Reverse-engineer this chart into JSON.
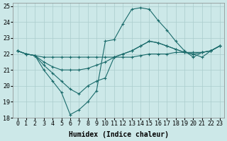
{
  "xlabel": "Humidex (Indice chaleur)",
  "background_color": "#cce8e8",
  "grid_color": "#aacccc",
  "line_color": "#1a6b6b",
  "xlim": [
    -0.5,
    23.5
  ],
  "ylim": [
    18,
    25.2
  ],
  "yticks": [
    18,
    19,
    20,
    21,
    22,
    23,
    24,
    25
  ],
  "xticks": [
    0,
    1,
    2,
    3,
    4,
    5,
    6,
    7,
    8,
    9,
    10,
    11,
    12,
    13,
    14,
    15,
    16,
    17,
    18,
    19,
    20,
    21,
    22,
    23
  ],
  "lines": [
    {
      "x": [
        0,
        1,
        2,
        3,
        4,
        5,
        6,
        7,
        8,
        9,
        10,
        11,
        12,
        13,
        14,
        15,
        16,
        17,
        18,
        19,
        20,
        21,
        22,
        23
      ],
      "y": [
        22.2,
        22.0,
        21.9,
        21.0,
        20.3,
        19.6,
        18.2,
        18.5,
        19.0,
        19.7,
        22.8,
        22.9,
        23.9,
        24.8,
        24.9,
        24.8,
        24.1,
        23.5,
        22.8,
        22.2,
        21.8,
        22.1,
        22.2,
        22.5
      ]
    },
    {
      "x": [
        0,
        1,
        2,
        3,
        4,
        5,
        6,
        7,
        8,
        9,
        10,
        11,
        12,
        13,
        14,
        15,
        16,
        17,
        18,
        19,
        20,
        21,
        22,
        23
      ],
      "y": [
        22.2,
        22.0,
        21.9,
        21.8,
        21.8,
        21.8,
        21.8,
        21.8,
        21.8,
        21.8,
        21.8,
        21.8,
        21.8,
        21.8,
        21.9,
        22.0,
        22.0,
        22.0,
        22.1,
        22.1,
        22.1,
        22.1,
        22.2,
        22.5
      ]
    },
    {
      "x": [
        0,
        1,
        2,
        3,
        4,
        5,
        6,
        7,
        8,
        9,
        10,
        11,
        12,
        13,
        14,
        15,
        16,
        17,
        18,
        19,
        20,
        21,
        22,
        23
      ],
      "y": [
        22.2,
        22.0,
        21.9,
        21.5,
        21.2,
        21.0,
        21.0,
        21.0,
        21.1,
        21.3,
        21.5,
        21.8,
        22.0,
        22.2,
        22.5,
        22.8,
        22.7,
        22.5,
        22.3,
        22.1,
        22.0,
        22.1,
        22.2,
        22.5
      ]
    },
    {
      "x": [
        0,
        1,
        2,
        3,
        4,
        5,
        6,
        7,
        8,
        9,
        10,
        11,
        12,
        13,
        14,
        15,
        16,
        17,
        18,
        19,
        20,
        21,
        22,
        23
      ],
      "y": [
        22.2,
        22.0,
        21.9,
        21.3,
        20.8,
        20.3,
        19.8,
        19.5,
        20.0,
        20.3,
        20.5,
        21.8,
        22.0,
        22.2,
        22.5,
        22.8,
        22.7,
        22.5,
        22.3,
        22.1,
        22.0,
        21.8,
        22.2,
        22.5
      ]
    }
  ],
  "marker": "+",
  "marker_size": 3.5,
  "line_width": 0.8,
  "tick_fontsize": 6,
  "label_fontsize": 7
}
